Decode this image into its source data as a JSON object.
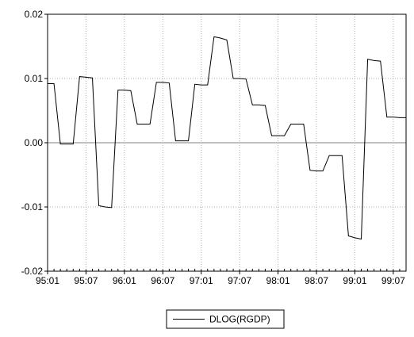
{
  "chart_data": {
    "type": "line",
    "categories": [
      "95:01",
      null,
      null,
      null,
      null,
      null,
      "95:07",
      null,
      null,
      null,
      null,
      null,
      "96:01",
      null,
      null,
      null,
      null,
      null,
      "96:07",
      null,
      null,
      null,
      null,
      null,
      "97:01",
      null,
      null,
      null,
      null,
      null,
      "97:07",
      null,
      null,
      null,
      null,
      null,
      "98:01",
      null,
      null,
      null,
      null,
      null,
      "98:07",
      null,
      null,
      null,
      null,
      null,
      "99:01",
      null,
      null,
      null,
      null,
      null,
      "99:07",
      null,
      null
    ],
    "series": [
      {
        "name": "DLOG(RGDP)",
        "color": "#000000",
        "values": [
          0.0092,
          0.0092,
          -0.0002,
          -0.0002,
          -0.0002,
          0.0103,
          0.0102,
          0.0101,
          -0.0098,
          -0.01,
          -0.0101,
          0.0082,
          0.0082,
          0.0081,
          0.0029,
          0.0029,
          0.0029,
          0.0094,
          0.0094,
          0.0093,
          0.0003,
          0.0003,
          0.0003,
          0.0091,
          0.009,
          0.009,
          0.0165,
          0.0163,
          0.016,
          0.01,
          0.01,
          0.0099,
          0.0059,
          0.0059,
          0.0058,
          0.0011,
          0.0011,
          0.0011,
          0.0029,
          0.0029,
          0.0029,
          -0.0043,
          -0.0044,
          -0.0044,
          -0.002,
          -0.002,
          -0.002,
          -0.0145,
          -0.0148,
          -0.015,
          0.013,
          0.0128,
          0.0127,
          0.004,
          0.004,
          0.0039,
          0.0039
        ]
      }
    ],
    "ylim": [
      -0.02,
      0.02
    ],
    "yticks": [
      -0.02,
      -0.01,
      {
        "value": 0,
        "label": "0.00"
      },
      0.01,
      0.02
    ],
    "grid": true
  }
}
